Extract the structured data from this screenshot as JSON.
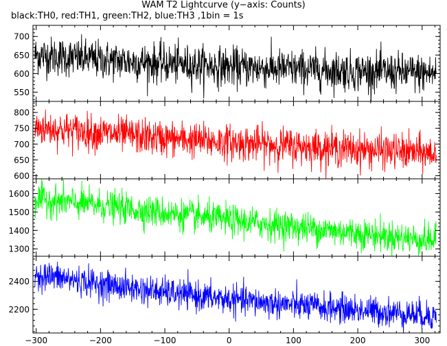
{
  "chart_data": {
    "type": "line",
    "title": "WAM T2 Lightcurve (y−axis: Counts)",
    "subtitle": "black:TH0, red:TH1, green:TH2, blue:TH3 ,1bin = 1s",
    "xlabel": "",
    "ylabel": "",
    "xlim": [
      -305,
      328
    ],
    "x_ticks": [
      -300,
      -200,
      -100,
      0,
      100,
      200,
      300
    ],
    "x_tick_labels": [
      "−300",
      "−200",
      "−100",
      "0",
      "100",
      "200",
      "300"
    ],
    "grid": false,
    "panels": [
      {
        "name": "TH0",
        "color": "#000000",
        "ylim": [
          525,
          730
        ],
        "y_ticks": [
          550,
          600,
          650,
          700
        ],
        "y_tick_labels": [
          "550",
          "600",
          "650",
          "700"
        ],
        "trend_x": [
          -300,
          -200,
          -100,
          0,
          100,
          200,
          300,
          322
        ],
        "trend_y": [
          650,
          637,
          627,
          618,
          612,
          606,
          601,
          600
        ],
        "noise_sd": 26
      },
      {
        "name": "TH1",
        "color": "#ff0000",
        "ylim": [
          590,
          835
        ],
        "y_ticks": [
          600,
          650,
          700,
          750,
          800
        ],
        "y_tick_labels": [
          "600",
          "650",
          "700",
          "750",
          "800"
        ],
        "trend_x": [
          -300,
          -200,
          -100,
          0,
          100,
          200,
          300,
          322
        ],
        "trend_y": [
          752,
          735,
          718,
          705,
          694,
          683,
          672,
          668
        ],
        "noise_sd": 28
      },
      {
        "name": "TH2",
        "color": "#00ff00",
        "ylim": [
          1260,
          1680
        ],
        "y_ticks": [
          1300,
          1400,
          1500,
          1600
        ],
        "y_tick_labels": [
          "1300",
          "1400",
          "1500",
          "1600"
        ],
        "trend_x": [
          -300,
          -200,
          -100,
          0,
          100,
          200,
          300,
          322
        ],
        "trend_y": [
          1570,
          1535,
          1495,
          1455,
          1420,
          1385,
          1350,
          1345
        ],
        "noise_sd": 42
      },
      {
        "name": "TH3",
        "color": "#0000ff",
        "ylim": [
          2030,
          2580
        ],
        "y_ticks": [
          2200,
          2400
        ],
        "y_tick_labels": [
          "2200",
          "2400"
        ],
        "trend_x": [
          -300,
          -200,
          -100,
          0,
          100,
          200,
          300,
          322
        ],
        "trend_y": [
          2450,
          2380,
          2320,
          2270,
          2230,
          2195,
          2160,
          2150
        ],
        "noise_sd": 52
      }
    ],
    "bin_seconds": 1
  }
}
